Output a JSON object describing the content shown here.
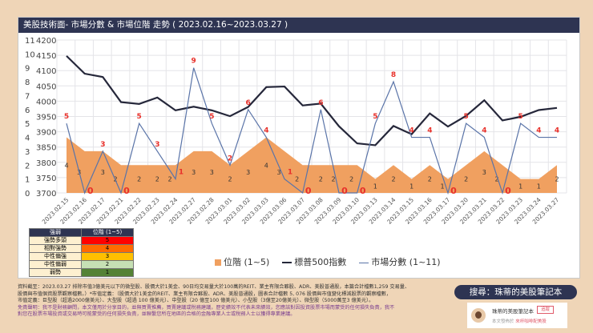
{
  "title": "美股技術面- 市場分數 & 市場位階 走勢 ( 2023.02.16~2023.03.27 )",
  "chart_data": {
    "type": "line+area",
    "categories": [
      "2023.02.15",
      "2023.02.16",
      "2023.02.17",
      "2023.02.21",
      "2023.02.22",
      "2023.02.23",
      "2023.02.24",
      "2023.02.27",
      "2023.02.28",
      "2023.03.01",
      "2023.03.02",
      "2023.03.03",
      "2023.03.06",
      "2023.03.07",
      "2023.03.08",
      "2023.03.09",
      "2023.03.10",
      "2023.03.13",
      "2023.03.14",
      "2023.03.15",
      "2023.03.16",
      "2023.03.17",
      "2023.03.20",
      "2023.03.21",
      "2023.03.22",
      "2023.03.23",
      "2023.03.24",
      "2023.03.27"
    ],
    "left_axis": {
      "ticks": [
        0,
        1,
        2,
        3,
        4,
        5,
        6,
        7,
        8,
        9,
        10,
        11
      ],
      "ylim": [
        0,
        11
      ]
    },
    "right_axis": {
      "ticks": [
        3700,
        3750,
        3800,
        3850,
        3900,
        3950,
        4000,
        4050,
        4100,
        4150,
        4200
      ],
      "ylim": [
        3700,
        4200
      ]
    },
    "grid": true,
    "legend_position": "bottom",
    "series": [
      {
        "name": "位階 (1~5)",
        "type": "area",
        "axis": "left",
        "color": "#f0a060",
        "values": [
          4,
          3,
          3,
          2,
          2,
          2,
          2,
          3,
          3,
          2,
          3,
          4,
          3,
          2,
          2,
          2,
          2,
          1,
          2,
          1,
          2,
          1,
          2,
          3,
          2,
          1,
          1,
          2
        ]
      },
      {
        "name": "標普500指數",
        "type": "line",
        "axis": "sp",
        "color": "#25273a",
        "values": [
          4148,
          4090,
          4079,
          3997,
          3991,
          4012,
          3970,
          3982,
          3970,
          3951,
          3981,
          4046,
          4048,
          3986,
          3992,
          3918,
          3862,
          3856,
          3919,
          3892,
          3960,
          3917,
          3952,
          4003,
          3937,
          3949,
          3971,
          3978
        ]
      },
      {
        "name": "市場分數 (1~11)",
        "type": "line",
        "axis": "left",
        "color": "#5a74a8",
        "values": [
          5,
          0,
          3,
          0,
          5,
          3,
          1,
          9,
          5,
          2,
          6,
          4,
          1,
          0,
          6,
          0,
          0,
          5,
          8,
          4,
          4,
          0,
          5,
          4,
          0,
          5,
          4,
          4
        ]
      }
    ]
  },
  "level_table": {
    "headers": [
      "強弱",
      "位階 (1~5)"
    ],
    "rows": [
      {
        "label": "強勢多頭",
        "value": "5",
        "color": "#ff0000"
      },
      {
        "label": "相對強勢",
        "value": "4",
        "color": "#ff6a00"
      },
      {
        "label": "中性偏強",
        "value": "3",
        "color": "#ffc000"
      },
      {
        "label": "中性偏弱",
        "value": "2",
        "color": "#c6e0b4"
      },
      {
        "label": "弱勢",
        "value": "1",
        "color": "#548235"
      }
    ]
  },
  "footer": {
    "lines": [
      "資料截至：2023.03.27 排除市值3億美元以下的微型股、股價大於1美金、90日均交易量大於100萬的REIT、業主有限合夥股、ADR、美股普通股，本篇合計檔數1,259 交易量、",
      "股價與市值個資股票觀察檔數。）*市值定義：（股價大於1美金的REIT、業主有限合夥股、ADR、美股普通股，圖表合計檔數 5, 076 股價與市值變化標減股票的觀察檔數，",
      "市值定義：巨型股（超過2000億美元）、大型股（超過 100 億美元）、中型股（20 億至100 億美元）、小型股（3億至20億美元）、微型股（5000萬至3 億美元）。"
    ],
    "disclaimer": [
      "免責聲明：我不是財務顧問，本文僅用於分享目的，並無買賣推薦，買賣建議或稅務建議，歷史績效不代表未來績效，您應該對因投資股票市場而蒙受的任何損失負責，我不",
      "對您在股票市場投資或交易時可能蒙受的任何損失負責，並聯繫您所在地區的合格的金融專業人士或稅務人士以獲得專業建議。"
    ]
  },
  "search_pill": "搜尋：珠蒂的美股筆記本",
  "promo": {
    "name": "珠蒂的美股筆記本",
    "follow": "追蹤",
    "sub": "本文發佈於",
    "link": "來杯咖啡配美股"
  }
}
